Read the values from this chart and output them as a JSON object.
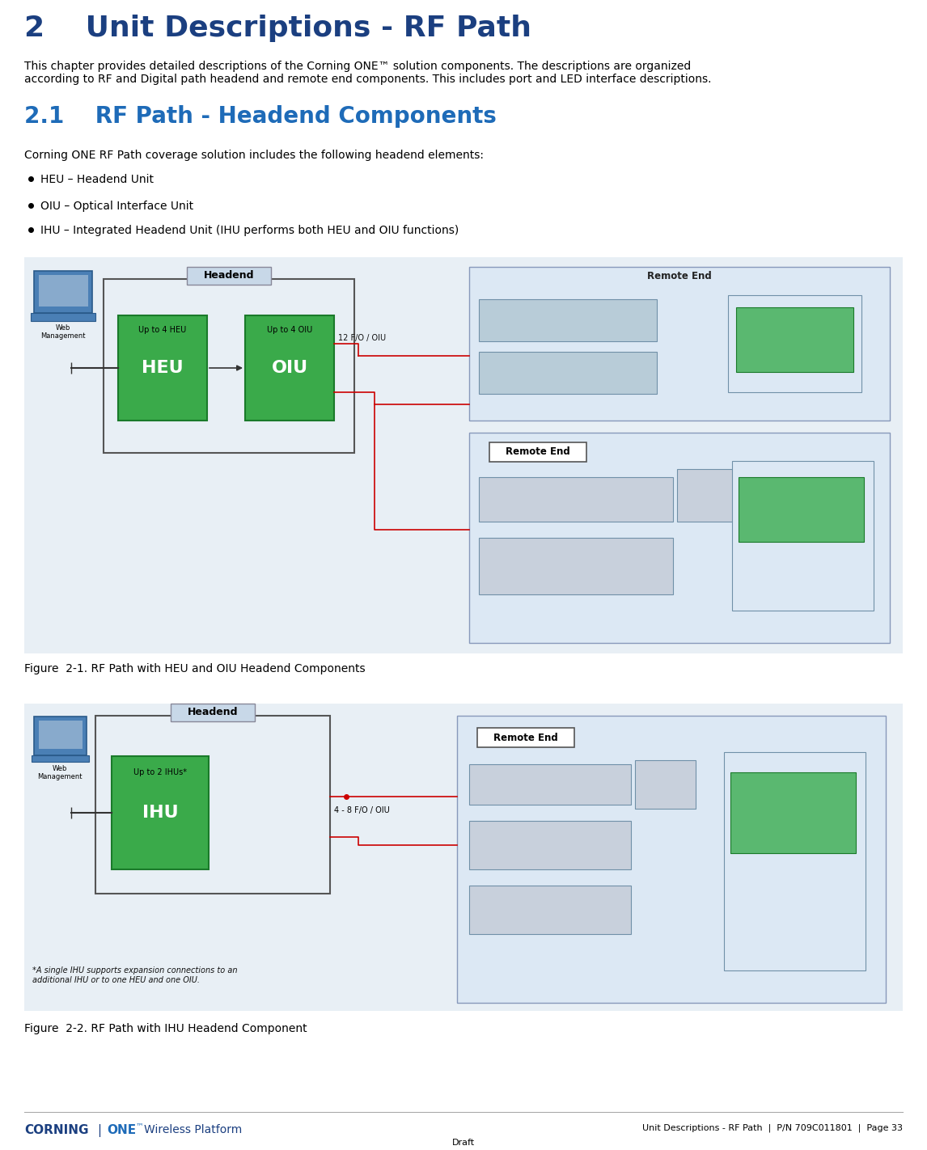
{
  "title": "2    Unit Descriptions - RF Path",
  "title_color": "#1b3f80",
  "title_fontsize": 26,
  "section_title": "2.1    RF Path - Headend Components",
  "section_title_color": "#1e6bb8",
  "section_title_fontsize": 20,
  "body_text1": "This chapter provides detailed descriptions of the Corning ONE™ solution components. The descriptions are organized\naccording to RF and Digital path headend and remote end components. This includes port and LED interface descriptions.",
  "body_text2": "Corning ONE RF Path coverage solution includes the following headend elements:",
  "bullets": [
    "HEU – Headend Unit",
    "OIU – Optical Interface Unit",
    "IHU – Integrated Headend Unit (IHU performs both HEU and OIU functions)"
  ],
  "fig1_caption": "Figure  2-1. RF Path with HEU and OIU Headend Components",
  "fig2_caption": "Figure  2-2. RF Path with IHU Headend Component",
  "footer_right": "Unit Descriptions - RF Path  |  P/N 709C011801  |  Page 33",
  "footer_center": "Draft",
  "bg_color": "#ffffff",
  "text_color": "#000000",
  "header_bg": "#c8d8e8",
  "diagram_bg": "#e8eff5",
  "remote_bg": "#dce8f4",
  "green_fill": "#3aaa4a",
  "green_edge": "#1a7a2a",
  "gray_fill": "#b8ccd8",
  "gray_edge": "#7090a8",
  "remote_inner_green": "#5ab870",
  "line_color": "#cc0000"
}
